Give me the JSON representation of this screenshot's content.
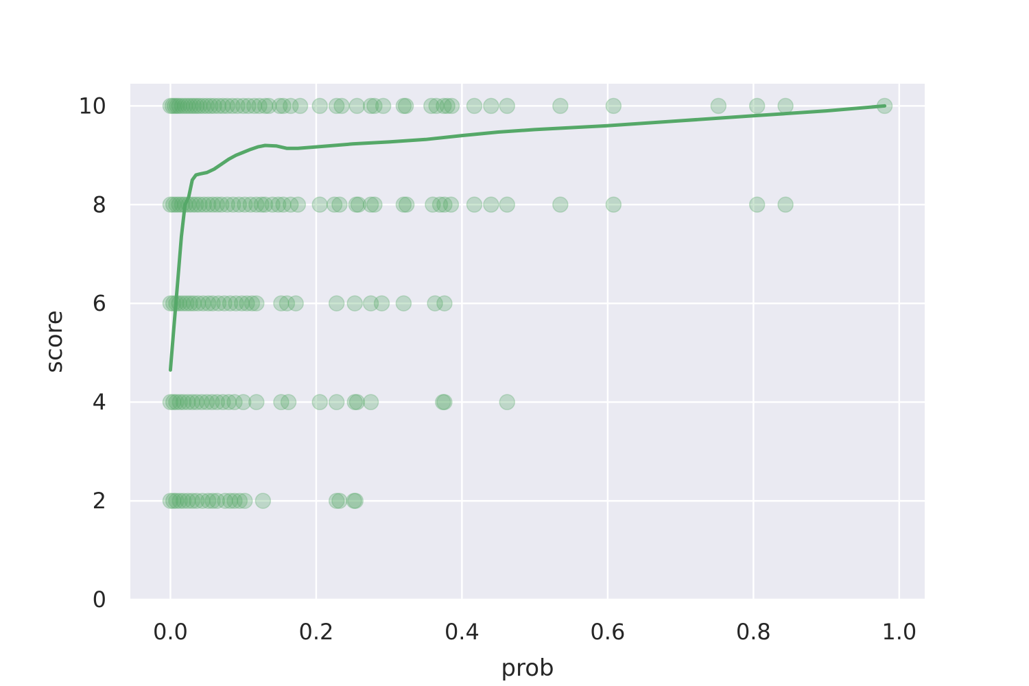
{
  "chart_data": {
    "type": "scatter",
    "title": "",
    "xlabel": "prob",
    "ylabel": "score",
    "xlim": [
      -0.055,
      1.035
    ],
    "ylim": [
      0,
      10.45
    ],
    "xticks": [
      0.0,
      0.2,
      0.4,
      0.6,
      0.8,
      1.0
    ],
    "xtick_labels": [
      "0.0",
      "0.2",
      "0.4",
      "0.6",
      "0.8",
      "1.0"
    ],
    "yticks": [
      0,
      2,
      4,
      6,
      8,
      10
    ],
    "ytick_labels": [
      "0",
      "2",
      "4",
      "6",
      "8",
      "10"
    ],
    "grid": true,
    "legend": "none",
    "colors": {
      "background": "#eaeaf2",
      "grid": "#ffffff",
      "series": "#55a868"
    },
    "point_alpha": 0.3,
    "scatter": {
      "points_by_score": [
        {
          "score": 10,
          "x": [
            0.0,
            0.003,
            0.006,
            0.009,
            0.012,
            0.016,
            0.02,
            0.024,
            0.028,
            0.032,
            0.036,
            0.04,
            0.045,
            0.05,
            0.055,
            0.06,
            0.066,
            0.072,
            0.078,
            0.085,
            0.092,
            0.1,
            0.107,
            0.115,
            0.122,
            0.13,
            0.135,
            0.15,
            0.155,
            0.165,
            0.178,
            0.205,
            0.228,
            0.235,
            0.256,
            0.275,
            0.28,
            0.292,
            0.32,
            0.323,
            0.358,
            0.365,
            0.375,
            0.38,
            0.386,
            0.417,
            0.44,
            0.462,
            0.535,
            0.608,
            0.752,
            0.805,
            0.844,
            0.98
          ]
        },
        {
          "score": 8,
          "x": [
            0.0,
            0.004,
            0.008,
            0.012,
            0.016,
            0.02,
            0.025,
            0.03,
            0.035,
            0.04,
            0.046,
            0.052,
            0.058,
            0.064,
            0.07,
            0.078,
            0.086,
            0.094,
            0.102,
            0.11,
            0.118,
            0.125,
            0.13,
            0.14,
            0.148,
            0.155,
            0.165,
            0.175,
            0.205,
            0.225,
            0.232,
            0.255,
            0.258,
            0.275,
            0.28,
            0.32,
            0.324,
            0.36,
            0.37,
            0.376,
            0.385,
            0.417,
            0.44,
            0.462,
            0.535,
            0.608,
            0.805,
            0.844
          ]
        },
        {
          "score": 6,
          "x": [
            0.0,
            0.004,
            0.008,
            0.012,
            0.017,
            0.022,
            0.027,
            0.032,
            0.038,
            0.045,
            0.052,
            0.058,
            0.066,
            0.074,
            0.082,
            0.09,
            0.098,
            0.105,
            0.112,
            0.118,
            0.152,
            0.16,
            0.172,
            0.228,
            0.253,
            0.275,
            0.29,
            0.32,
            0.363,
            0.376
          ]
        },
        {
          "score": 4,
          "x": [
            0.0,
            0.004,
            0.008,
            0.013,
            0.018,
            0.024,
            0.03,
            0.036,
            0.043,
            0.05,
            0.057,
            0.064,
            0.072,
            0.08,
            0.088,
            0.1,
            0.118,
            0.152,
            0.162,
            0.205,
            0.228,
            0.253,
            0.256,
            0.275,
            0.374,
            0.376,
            0.462
          ]
        },
        {
          "score": 2,
          "x": [
            0.0,
            0.004,
            0.008,
            0.013,
            0.018,
            0.024,
            0.03,
            0.036,
            0.044,
            0.052,
            0.058,
            0.064,
            0.075,
            0.082,
            0.088,
            0.095,
            0.102,
            0.127,
            0.228,
            0.232,
            0.252,
            0.254
          ]
        }
      ]
    },
    "trend_line": {
      "x": [
        0.0,
        0.005,
        0.01,
        0.015,
        0.02,
        0.025,
        0.03,
        0.035,
        0.04,
        0.05,
        0.06,
        0.07,
        0.08,
        0.09,
        0.1,
        0.11,
        0.12,
        0.13,
        0.145,
        0.16,
        0.175,
        0.2,
        0.25,
        0.3,
        0.35,
        0.4,
        0.45,
        0.5,
        0.6,
        0.7,
        0.8,
        0.9,
        0.98
      ],
      "y": [
        4.65,
        5.55,
        6.45,
        7.35,
        8.0,
        8.15,
        8.5,
        8.6,
        8.62,
        8.65,
        8.72,
        8.82,
        8.92,
        9.0,
        9.06,
        9.12,
        9.17,
        9.2,
        9.19,
        9.14,
        9.14,
        9.17,
        9.23,
        9.27,
        9.32,
        9.4,
        9.47,
        9.52,
        9.6,
        9.7,
        9.8,
        9.9,
        10.0
      ]
    }
  }
}
